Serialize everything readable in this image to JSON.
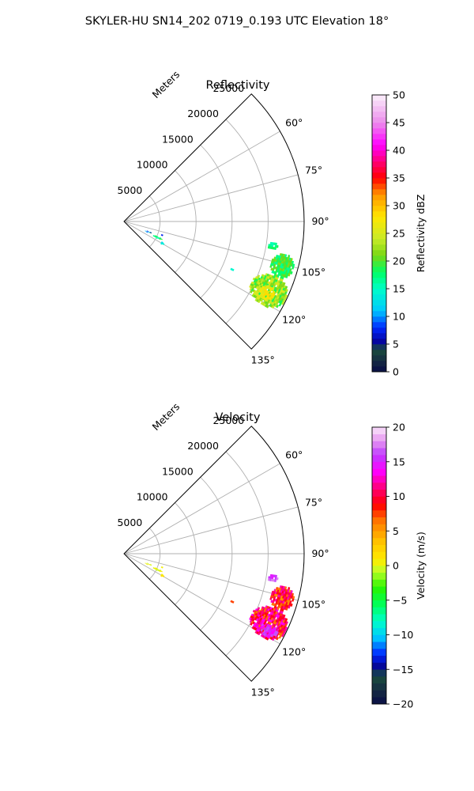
{
  "figure": {
    "title": "SKYLER-HU  SN14_202  0719_0.193 UTC Elevation 18°"
  },
  "chart_data": [
    {
      "type": "heatmap",
      "subtype": "polar-sector-ppi",
      "title": "Reflectivity",
      "radial_axis_label": "Meters",
      "radial_ticks": [
        5000,
        10000,
        15000,
        20000,
        25000
      ],
      "radial_tick_labels": [
        "5000",
        "10000",
        "15000",
        "20000",
        "25000"
      ],
      "range_max_m": 25000,
      "angle_range_deg": [
        45,
        135
      ],
      "angle_ticks_deg": [
        60,
        75,
        90,
        105,
        120,
        135
      ],
      "angle_tick_labels": [
        "60°",
        "75°",
        "90°",
        "105°",
        "120°",
        "135°"
      ],
      "grid": true,
      "colorbar": {
        "label": "Reflectivity dBZ",
        "min": 0,
        "max": 50,
        "ticks": [
          0,
          5,
          10,
          15,
          20,
          25,
          30,
          35,
          40,
          45,
          50
        ],
        "tick_labels": [
          "0",
          "5",
          "10",
          "15",
          "20",
          "25",
          "30",
          "35",
          "40",
          "45",
          "50"
        ],
        "colormap": "pyart_HomeyerRainbow",
        "bins": 50
      },
      "echo_regions": [
        {
          "az": [
            114,
            117
          ],
          "r": [
            4500,
            5800
          ],
          "value": 17,
          "spread": 3,
          "density": 0.85
        },
        {
          "az": [
            111,
            115
          ],
          "r": [
            3200,
            4100
          ],
          "value": 8,
          "spread": 5,
          "density": 0.55
        },
        {
          "az": [
            118,
            121
          ],
          "r": [
            5700,
            6300
          ],
          "value": 13,
          "spread": 2,
          "density": 0.6
        },
        {
          "az": [
            108,
            111
          ],
          "r": [
            5500,
            5800
          ],
          "value": 6,
          "spread": 2,
          "density": 0.6
        },
        {
          "az": [
            98,
            101
          ],
          "r": [
            20300,
            21600
          ],
          "value": 17,
          "spread": 2,
          "density": 0.9
        },
        {
          "az": [
            101.5,
            110
          ],
          "r": [
            21200,
            24400
          ],
          "value": 19,
          "spread": 3,
          "density": 0.92
        },
        {
          "az": [
            110,
            121
          ],
          "r": [
            19600,
            24900
          ],
          "value": 22,
          "spread": 4,
          "density": 0.95
        },
        {
          "az": [
            114,
            119
          ],
          "r": [
            21000,
            23300
          ],
          "value": 27,
          "spread": 2,
          "density": 0.8
        },
        {
          "az": [
            113.5,
            114.5
          ],
          "r": [
            16200,
            16600
          ],
          "value": 15,
          "spread": 1,
          "density": 1.0
        }
      ]
    },
    {
      "type": "heatmap",
      "subtype": "polar-sector-ppi",
      "title": "Velocity",
      "radial_axis_label": "Meters",
      "radial_ticks": [
        5000,
        10000,
        15000,
        20000,
        25000
      ],
      "radial_tick_labels": [
        "5000",
        "10000",
        "15000",
        "20000",
        "25000"
      ],
      "range_max_m": 25000,
      "angle_range_deg": [
        45,
        135
      ],
      "angle_ticks_deg": [
        60,
        75,
        90,
        105,
        120,
        135
      ],
      "angle_tick_labels": [
        "60°",
        "75°",
        "90°",
        "105°",
        "120°",
        "135°"
      ],
      "grid": true,
      "colorbar": {
        "label": "Velocity (m/s)",
        "min": -20,
        "max": 20,
        "ticks": [
          -20,
          -15,
          -10,
          -5,
          0,
          5,
          10,
          15,
          20
        ],
        "tick_labels": [
          "−20",
          "−15",
          "−10",
          "−5",
          "0",
          "5",
          "10",
          "15",
          "20"
        ],
        "colormap": "pyart_BuDRd18",
        "bins": 40
      },
      "echo_regions": [
        {
          "az": [
            114,
            117
          ],
          "r": [
            4500,
            5800
          ],
          "value": 0,
          "spread": 1,
          "density": 0.85
        },
        {
          "az": [
            111,
            115
          ],
          "r": [
            3200,
            4100
          ],
          "value": 0,
          "spread": 1,
          "density": 0.55
        },
        {
          "az": [
            118,
            121
          ],
          "r": [
            5700,
            6300
          ],
          "value": 1,
          "spread": 1,
          "density": 0.6
        },
        {
          "az": [
            108,
            111
          ],
          "r": [
            5500,
            5800
          ],
          "value": 0,
          "spread": 1,
          "density": 0.6
        },
        {
          "az": [
            98,
            101
          ],
          "r": [
            20300,
            21600
          ],
          "value": 16,
          "spread": 2,
          "density": 0.9
        },
        {
          "az": [
            101.5,
            110
          ],
          "r": [
            21200,
            24400
          ],
          "value": 9,
          "spread": 4,
          "density": 0.92
        },
        {
          "az": [
            110,
            121
          ],
          "r": [
            19600,
            24900
          ],
          "value": 10,
          "spread": 4,
          "density": 0.95
        },
        {
          "az": [
            116,
            120
          ],
          "r": [
            21500,
            24000
          ],
          "value": 15,
          "spread": 2,
          "density": 0.85
        },
        {
          "az": [
            113.5,
            114.5
          ],
          "r": [
            16200,
            16600
          ],
          "value": 8,
          "spread": 1,
          "density": 1.0
        }
      ]
    }
  ]
}
